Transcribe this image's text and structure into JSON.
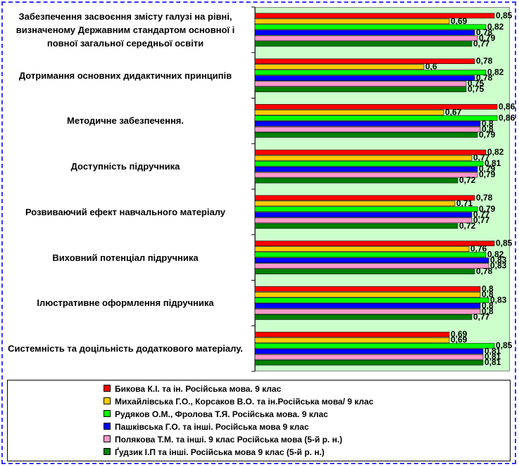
{
  "chart_data": {
    "type": "bar",
    "orientation": "horizontal",
    "categories": [
      "Забезпечення засвоєння змісту галузі на рівні, визначеному Державним стандартом основної і повної загальної середньої освіти",
      "Дотримання основних дидактичних принципів",
      "Методичне забезпечення.",
      "Доступність підручника",
      "Розвиваючий ефект навчального матеріалу",
      "Виховний потенціал підручника",
      "Ілюстративне оформлення підручника",
      "Системність  та доцільність додаткового матеріалу."
    ],
    "series": [
      {
        "name": "Бикова К.І. та ін. Російська мова. 9 клас",
        "color": "#ff0000",
        "values": [
          0.85,
          0.78,
          0.86,
          0.82,
          0.78,
          0.85,
          0.8,
          0.69
        ],
        "labels": [
          "0,85",
          "0,78",
          "0,86",
          "0,82",
          "0,78",
          "0,85",
          "0,8",
          "0,69"
        ]
      },
      {
        "name": "Михайлівська Г.О., Корсаков В.О. та ін.Російська мова/ 9 клас",
        "color": "#ffcc00",
        "values": [
          0.69,
          0.6,
          0.67,
          0.77,
          0.71,
          0.76,
          0.8,
          0.69
        ],
        "labels": [
          "0,69",
          "0,6",
          "0,67",
          "0,77",
          "0,71",
          "0,76",
          "0,8",
          "0,69"
        ]
      },
      {
        "name": "Рудяков О.М., Фролова Т.Я. Російська мова. 9 клас",
        "color": "#00ff00",
        "values": [
          0.82,
          0.82,
          0.86,
          0.81,
          0.79,
          0.82,
          0.83,
          0.85
        ],
        "labels": [
          "0,82",
          "0,82",
          "0,86",
          "0,81",
          "0,79",
          "0,82",
          "0,83",
          "0,85"
        ]
      },
      {
        "name": "Пашківська Г.О. та інші. Російська мова 9 клас",
        "color": "#0000ff",
        "values": [
          0.78,
          0.78,
          0.8,
          0.79,
          0.77,
          0.83,
          0.8,
          0.81
        ],
        "labels": [
          "0,78",
          "0,78",
          "0,8",
          "0,79",
          "0,77",
          "0,83",
          "0,8",
          "0,81"
        ]
      },
      {
        "name": "Полякова Т.М. та інші. 9 клас Російська мова (5-й р. н.)",
        "color": "#ff99cc",
        "values": [
          0.79,
          0.75,
          0.8,
          0.79,
          0.77,
          0.83,
          0.8,
          0.81
        ],
        "labels": [
          "0,79",
          "0,75",
          "0,8",
          "0,79",
          "0,77",
          "0,83",
          "0,8",
          "0,81"
        ]
      },
      {
        "name": "Ґудзик І.П та інші. Російська мова 9 клас (5-й р. н.)",
        "color": "#008000",
        "values": [
          0.77,
          0.75,
          0.79,
          0.72,
          0.72,
          0.78,
          0.77,
          0.81
        ],
        "labels": [
          "0,77",
          "0,75",
          "0,79",
          "0,72",
          "0,72",
          "0,78",
          "0,77",
          "0,81"
        ]
      }
    ],
    "xlim": [
      0,
      1
    ],
    "legend_position": "bottom",
    "grid": false,
    "title": "",
    "xlabel": "",
    "ylabel": ""
  }
}
